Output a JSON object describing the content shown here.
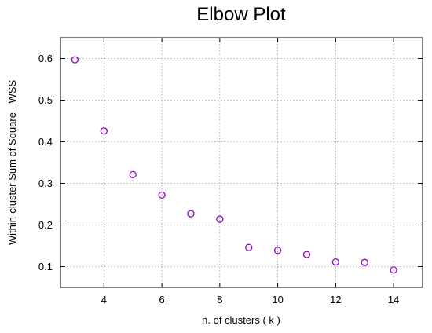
{
  "chart_data": {
    "type": "scatter",
    "title": "Elbow Plot",
    "xlabel": "n. of clusters ( k )",
    "ylabel": "Within-cluster Sum of Square - WSS",
    "xlim": [
      2.5,
      15.0
    ],
    "ylim": [
      0.05,
      0.65
    ],
    "xticks": [
      4,
      6,
      8,
      10,
      12,
      14
    ],
    "yticks": [
      0.1,
      0.2,
      0.3,
      0.4,
      0.5,
      0.6
    ],
    "grid": true,
    "marker": "circle",
    "color": "#9400d3",
    "series": [
      {
        "x": [
          3,
          4,
          5,
          6,
          7,
          8,
          9,
          10,
          11,
          12,
          13,
          14
        ],
        "y": [
          0.597,
          0.426,
          0.321,
          0.272,
          0.227,
          0.214,
          0.146,
          0.139,
          0.129,
          0.111,
          0.11,
          0.092
        ]
      }
    ]
  }
}
